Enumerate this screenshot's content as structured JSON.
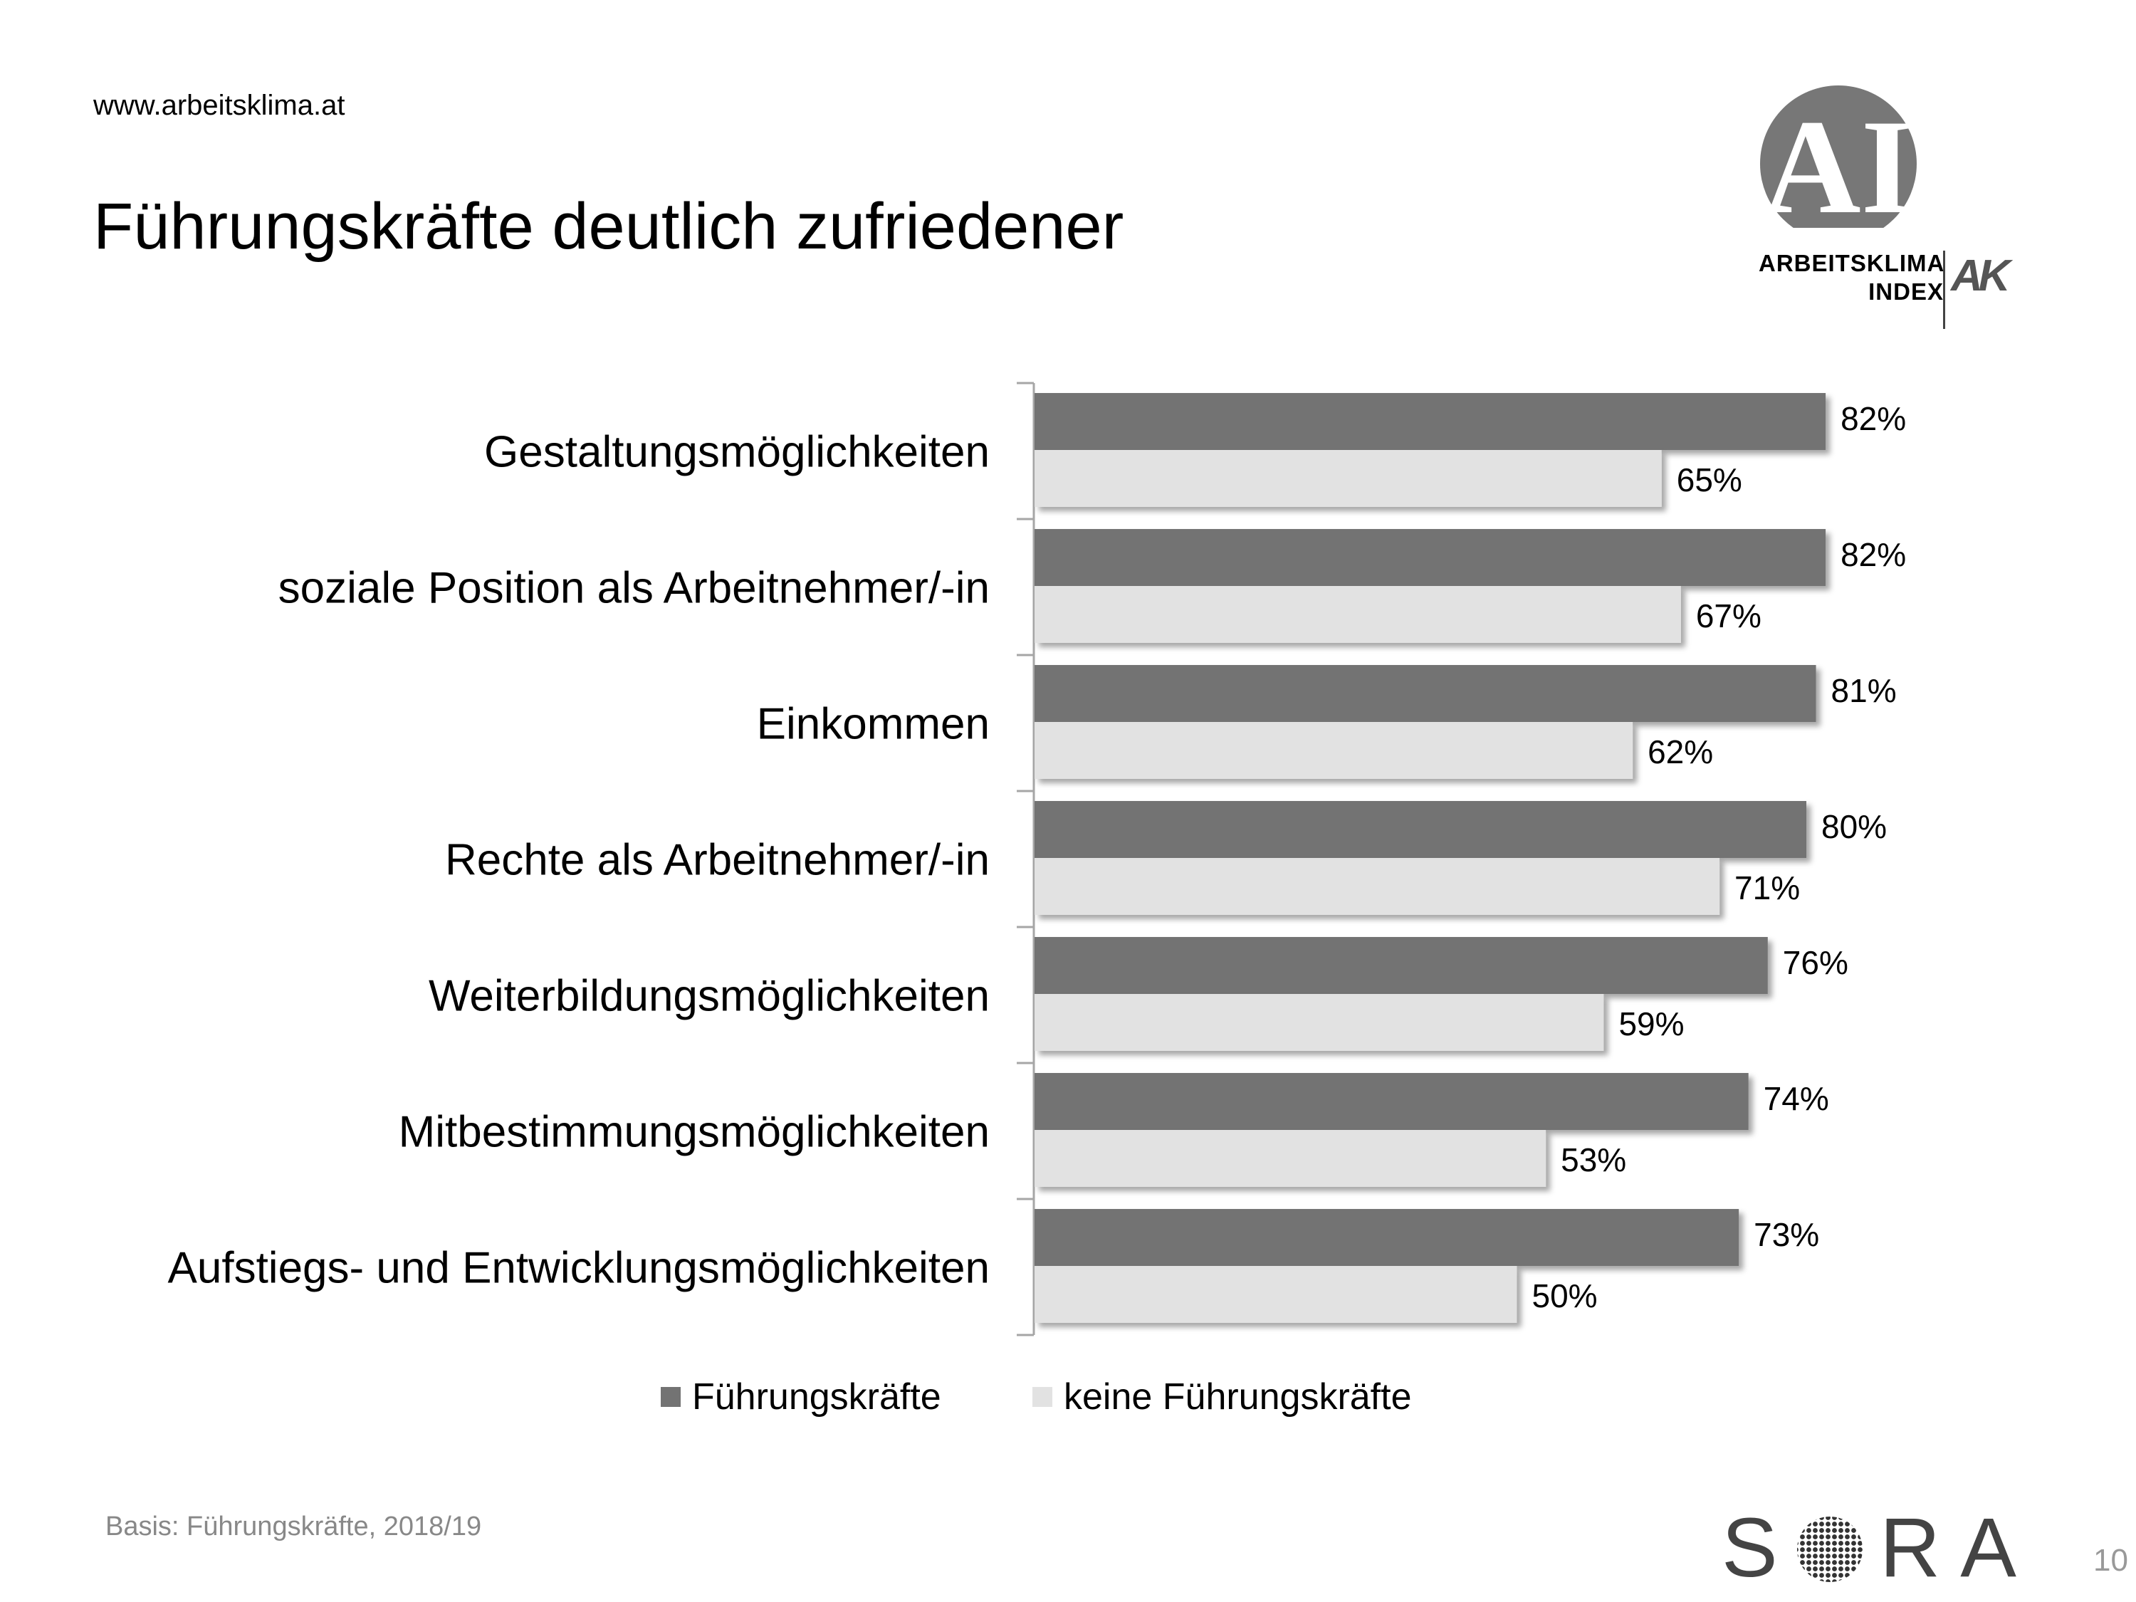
{
  "header": {
    "url": "www.arbeitsklima.at",
    "title": "Führungskräfte deutlich zufriedener"
  },
  "logo": {
    "mark": "AI",
    "line1": "ARBEITSKLIMA",
    "line2": "INDEX",
    "partner": "AK"
  },
  "chart_data": {
    "type": "bar",
    "orientation": "horizontal",
    "categories": [
      "Gestaltungsmöglichkeiten",
      "soziale Position als Arbeitnehmer/-in",
      "Einkommen",
      "Rechte als Arbeitnehmer/-in",
      "Weiterbildungsmöglichkeiten",
      "Mitbestimmungsmöglichkeiten",
      "Aufstiegs- und Entwicklungsmöglichkeiten"
    ],
    "series": [
      {
        "name": "Führungskräfte",
        "values": [
          82,
          82,
          81,
          80,
          76,
          74,
          73
        ],
        "color": "#737373"
      },
      {
        "name": "keine Führungskräfte",
        "values": [
          65,
          67,
          62,
          71,
          59,
          53,
          50
        ],
        "color": "#e2e2e2"
      }
    ],
    "value_suffix": "%",
    "xlim": [
      0,
      100
    ],
    "grid": false,
    "legend_position": "bottom"
  },
  "footer": {
    "basis": "Basis: Führungskräfte, 2018/19",
    "brand": "SORA",
    "page": "10"
  }
}
